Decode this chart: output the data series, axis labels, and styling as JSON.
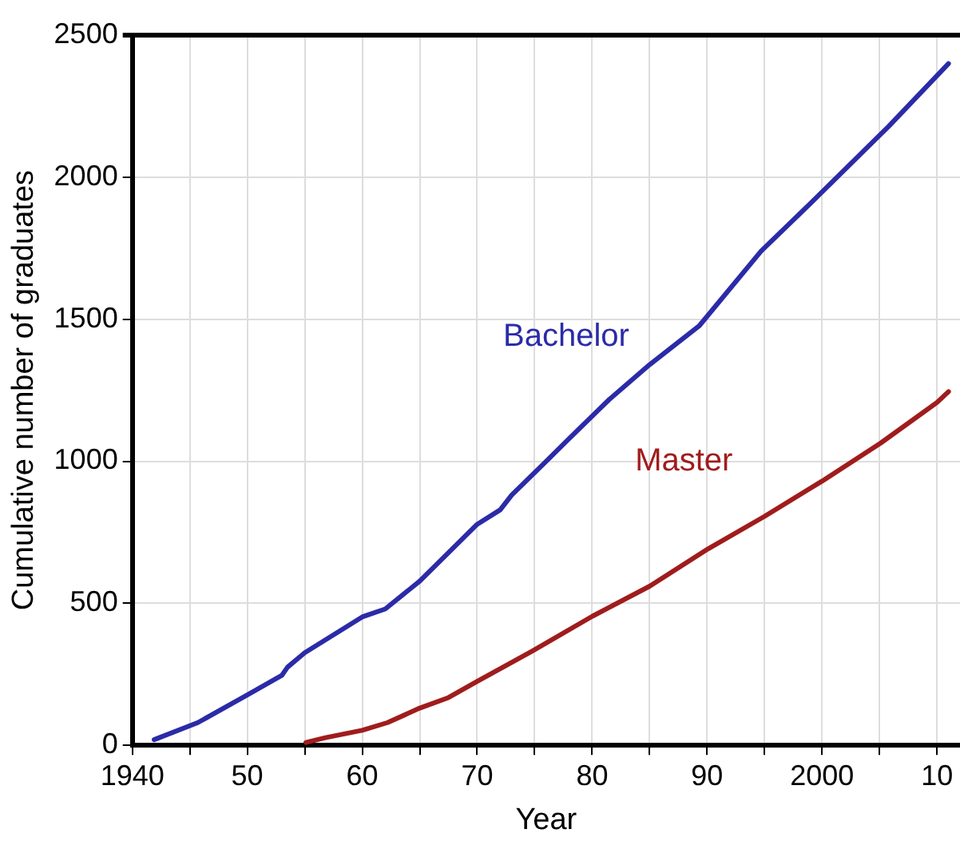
{
  "chart_data": {
    "type": "line",
    "xlabel": "Year",
    "ylabel": "Cumulative number of graduates",
    "xlim": [
      1940,
      2012
    ],
    "ylim": [
      0,
      2500
    ],
    "xticks": [
      {
        "value": 1940,
        "label": "1940"
      },
      {
        "value": 1945,
        "label": null
      },
      {
        "value": 1950,
        "label": "50"
      },
      {
        "value": 1955,
        "label": null
      },
      {
        "value": 1960,
        "label": "60"
      },
      {
        "value": 1965,
        "label": null
      },
      {
        "value": 1970,
        "label": "70"
      },
      {
        "value": 1975,
        "label": null
      },
      {
        "value": 1980,
        "label": "80"
      },
      {
        "value": 1985,
        "label": null
      },
      {
        "value": 1990,
        "label": "90"
      },
      {
        "value": 1995,
        "label": null
      },
      {
        "value": 2000,
        "label": "2000"
      },
      {
        "value": 2005,
        "label": null
      },
      {
        "value": 2010,
        "label": "10"
      }
    ],
    "yticks": [
      0,
      500,
      1000,
      1500,
      2000,
      2500
    ],
    "grid": true,
    "legend": false,
    "marker": "none",
    "line_style": "solid",
    "series": [
      {
        "name": "Bachelor",
        "color": "#2b2ba8",
        "x": [
          1941.9,
          1945.7,
          1950,
          1953,
          1953.5,
          1955,
          1960,
          1962,
          1965,
          1970,
          1972,
          1973,
          1976,
          1978,
          1981.5,
          1985,
          1989.3,
          1994.7,
          1999.1,
          2005.8,
          2011
        ],
        "values": [
          20,
          80,
          177,
          246,
          275,
          326,
          452,
          480,
          578,
          778,
          829,
          881,
          1000,
          1080,
          1218,
          1340,
          1476,
          1740,
          1912,
          2179,
          2400
        ]
      },
      {
        "name": "Master",
        "color": "#a01c1c",
        "x": [
          1955.1,
          1956.8,
          1960,
          1962.2,
          1965,
          1967.5,
          1970,
          1974.8,
          1980,
          1985,
          1990.1,
          1995,
          2000,
          2005.1,
          2010,
          2011
        ],
        "values": [
          10,
          27,
          53,
          80,
          131,
          168,
          225,
          332,
          454,
          560,
          692,
          806,
          930,
          1064,
          1207,
          1245
        ]
      }
    ]
  }
}
